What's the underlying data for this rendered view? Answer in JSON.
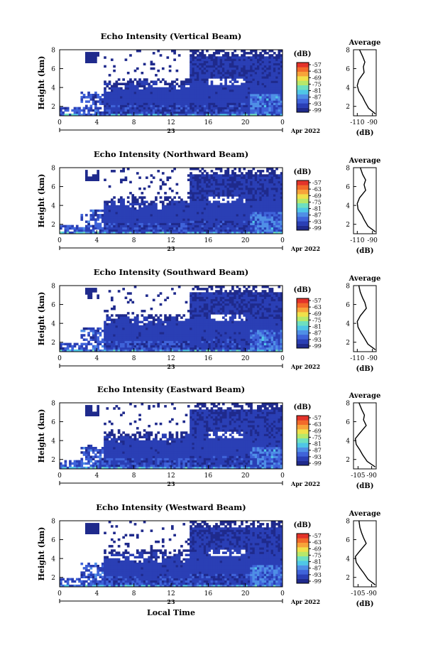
{
  "figure": {
    "date_label": "Apr 2022",
    "day_label": "23",
    "xlabel": "Local Time",
    "colorbar_unit": "(dB)",
    "colorbar_ticks": [
      "-57",
      "-63",
      "-69",
      "-75",
      "-81",
      "-87",
      "-93",
      "-99"
    ],
    "colormap": [
      "#1f2a8c",
      "#2a3fb5",
      "#3f63d9",
      "#4f8fe6",
      "#4fc7e6",
      "#6ee0c0",
      "#b7e86a",
      "#f0e04a",
      "#f7a33a",
      "#f26a2a",
      "#e3332a"
    ],
    "no_data_color": "#ffffff"
  },
  "chart_data": [
    {
      "type": "heatmap",
      "title": "Echo Intensity (Vertical Beam)",
      "ylabel": "Height (km)",
      "x_ticks": [
        "0",
        "4",
        "8",
        "12",
        "16",
        "20",
        "0"
      ],
      "y_ticks": [
        "2",
        "4",
        "6",
        "8"
      ],
      "xlim": [
        0,
        24
      ],
      "ylim": [
        1,
        8
      ],
      "clim": [
        -99,
        -57
      ],
      "profile": {
        "title": "Average",
        "xlabel": "(dB)",
        "x_ticks": [
          "-110",
          "-90"
        ],
        "xlim": [
          -115,
          -85
        ],
        "y_ticks": [
          "2",
          "4",
          "6",
          "8"
        ],
        "x": [
          -86,
          -95,
          -100,
          -103,
          -108,
          -110,
          -108,
          -101,
          -102,
          -100,
          -103,
          -107
        ],
        "y": [
          1.2,
          1.8,
          2.5,
          3.0,
          3.6,
          4.2,
          4.8,
          5.6,
          6.2,
          6.7,
          7.3,
          8.0
        ]
      }
    },
    {
      "type": "heatmap",
      "title": "Echo Intensity (Northward Beam)",
      "ylabel": "Height (km)",
      "x_ticks": [
        "0",
        "4",
        "8",
        "12",
        "16",
        "20",
        "0"
      ],
      "y_ticks": [
        "2",
        "4",
        "6",
        "8"
      ],
      "xlim": [
        0,
        24
      ],
      "ylim": [
        1,
        8
      ],
      "clim": [
        -99,
        -57
      ],
      "profile": {
        "title": "Average",
        "xlabel": "(dB)",
        "x_ticks": [
          "-110",
          "-90"
        ],
        "xlim": [
          -115,
          -85
        ],
        "y_ticks": [
          "2",
          "4",
          "6",
          "8"
        ],
        "x": [
          -86,
          -96,
          -101,
          -104,
          -109,
          -110,
          -107,
          -99,
          -101,
          -99,
          -103,
          -106
        ],
        "y": [
          1.2,
          1.8,
          2.5,
          3.0,
          3.6,
          4.2,
          4.8,
          5.6,
          6.2,
          6.7,
          7.3,
          8.0
        ]
      }
    },
    {
      "type": "heatmap",
      "title": "Echo Intensity (Southward Beam)",
      "ylabel": "Height (km)",
      "x_ticks": [
        "0",
        "4",
        "8",
        "12",
        "16",
        "20",
        "0"
      ],
      "y_ticks": [
        "2",
        "4",
        "6",
        "8"
      ],
      "xlim": [
        0,
        24
      ],
      "ylim": [
        1,
        8
      ],
      "clim": [
        -99,
        -57
      ],
      "profile": {
        "title": "Average",
        "xlabel": "(dB)",
        "x_ticks": [
          "-110",
          "-90"
        ],
        "xlim": [
          -115,
          -85
        ],
        "y_ticks": [
          "2",
          "4",
          "6",
          "8"
        ],
        "x": [
          -86,
          -96,
          -101,
          -105,
          -109,
          -110,
          -106,
          -98,
          -100,
          -103,
          -106,
          -108
        ],
        "y": [
          1.2,
          1.8,
          2.5,
          3.0,
          3.6,
          4.2,
          4.8,
          5.6,
          6.2,
          6.7,
          7.3,
          8.0
        ]
      }
    },
    {
      "type": "heatmap",
      "title": "Echo Intensity (Eastward Beam)",
      "ylabel": "Height (km)",
      "x_ticks": [
        "0",
        "4",
        "8",
        "12",
        "16",
        "20",
        "0"
      ],
      "y_ticks": [
        "2",
        "4",
        "6",
        "8"
      ],
      "xlim": [
        0,
        24
      ],
      "ylim": [
        1,
        8
      ],
      "clim": [
        -99,
        -57
      ],
      "profile": {
        "title": "Average",
        "xlabel": "(dB)",
        "x_ticks": [
          "-105",
          "-90"
        ],
        "xlim": [
          -110,
          -85
        ],
        "y_ticks": [
          "2",
          "4",
          "6",
          "8"
        ],
        "x": [
          -86,
          -95,
          -100,
          -103,
          -107,
          -108,
          -103,
          -96,
          -99,
          -98,
          -101,
          -104
        ],
        "y": [
          1.2,
          1.8,
          2.5,
          3.0,
          3.6,
          4.2,
          4.8,
          5.6,
          6.2,
          6.7,
          7.3,
          8.0
        ]
      }
    },
    {
      "type": "heatmap",
      "title": "Echo Intensity (Westward Beam)",
      "ylabel": "Height (km)",
      "x_ticks": [
        "0",
        "4",
        "8",
        "12",
        "16",
        "20",
        "0"
      ],
      "y_ticks": [
        "2",
        "4",
        "6",
        "8"
      ],
      "xlim": [
        0,
        24
      ],
      "ylim": [
        1,
        8
      ],
      "clim": [
        -99,
        -57
      ],
      "profile": {
        "title": "Average",
        "xlabel": "(dB)",
        "x_ticks": [
          "-105",
          "-90"
        ],
        "xlim": [
          -110,
          -85
        ],
        "y_ticks": [
          "2",
          "4",
          "6",
          "8"
        ],
        "x": [
          -86,
          -94,
          -99,
          -103,
          -107,
          -108,
          -103,
          -96,
          -99,
          -101,
          -103,
          -104
        ],
        "y": [
          1.2,
          1.8,
          2.5,
          3.0,
          3.6,
          4.2,
          4.8,
          5.6,
          6.2,
          6.7,
          7.3,
          8.0
        ]
      }
    }
  ]
}
